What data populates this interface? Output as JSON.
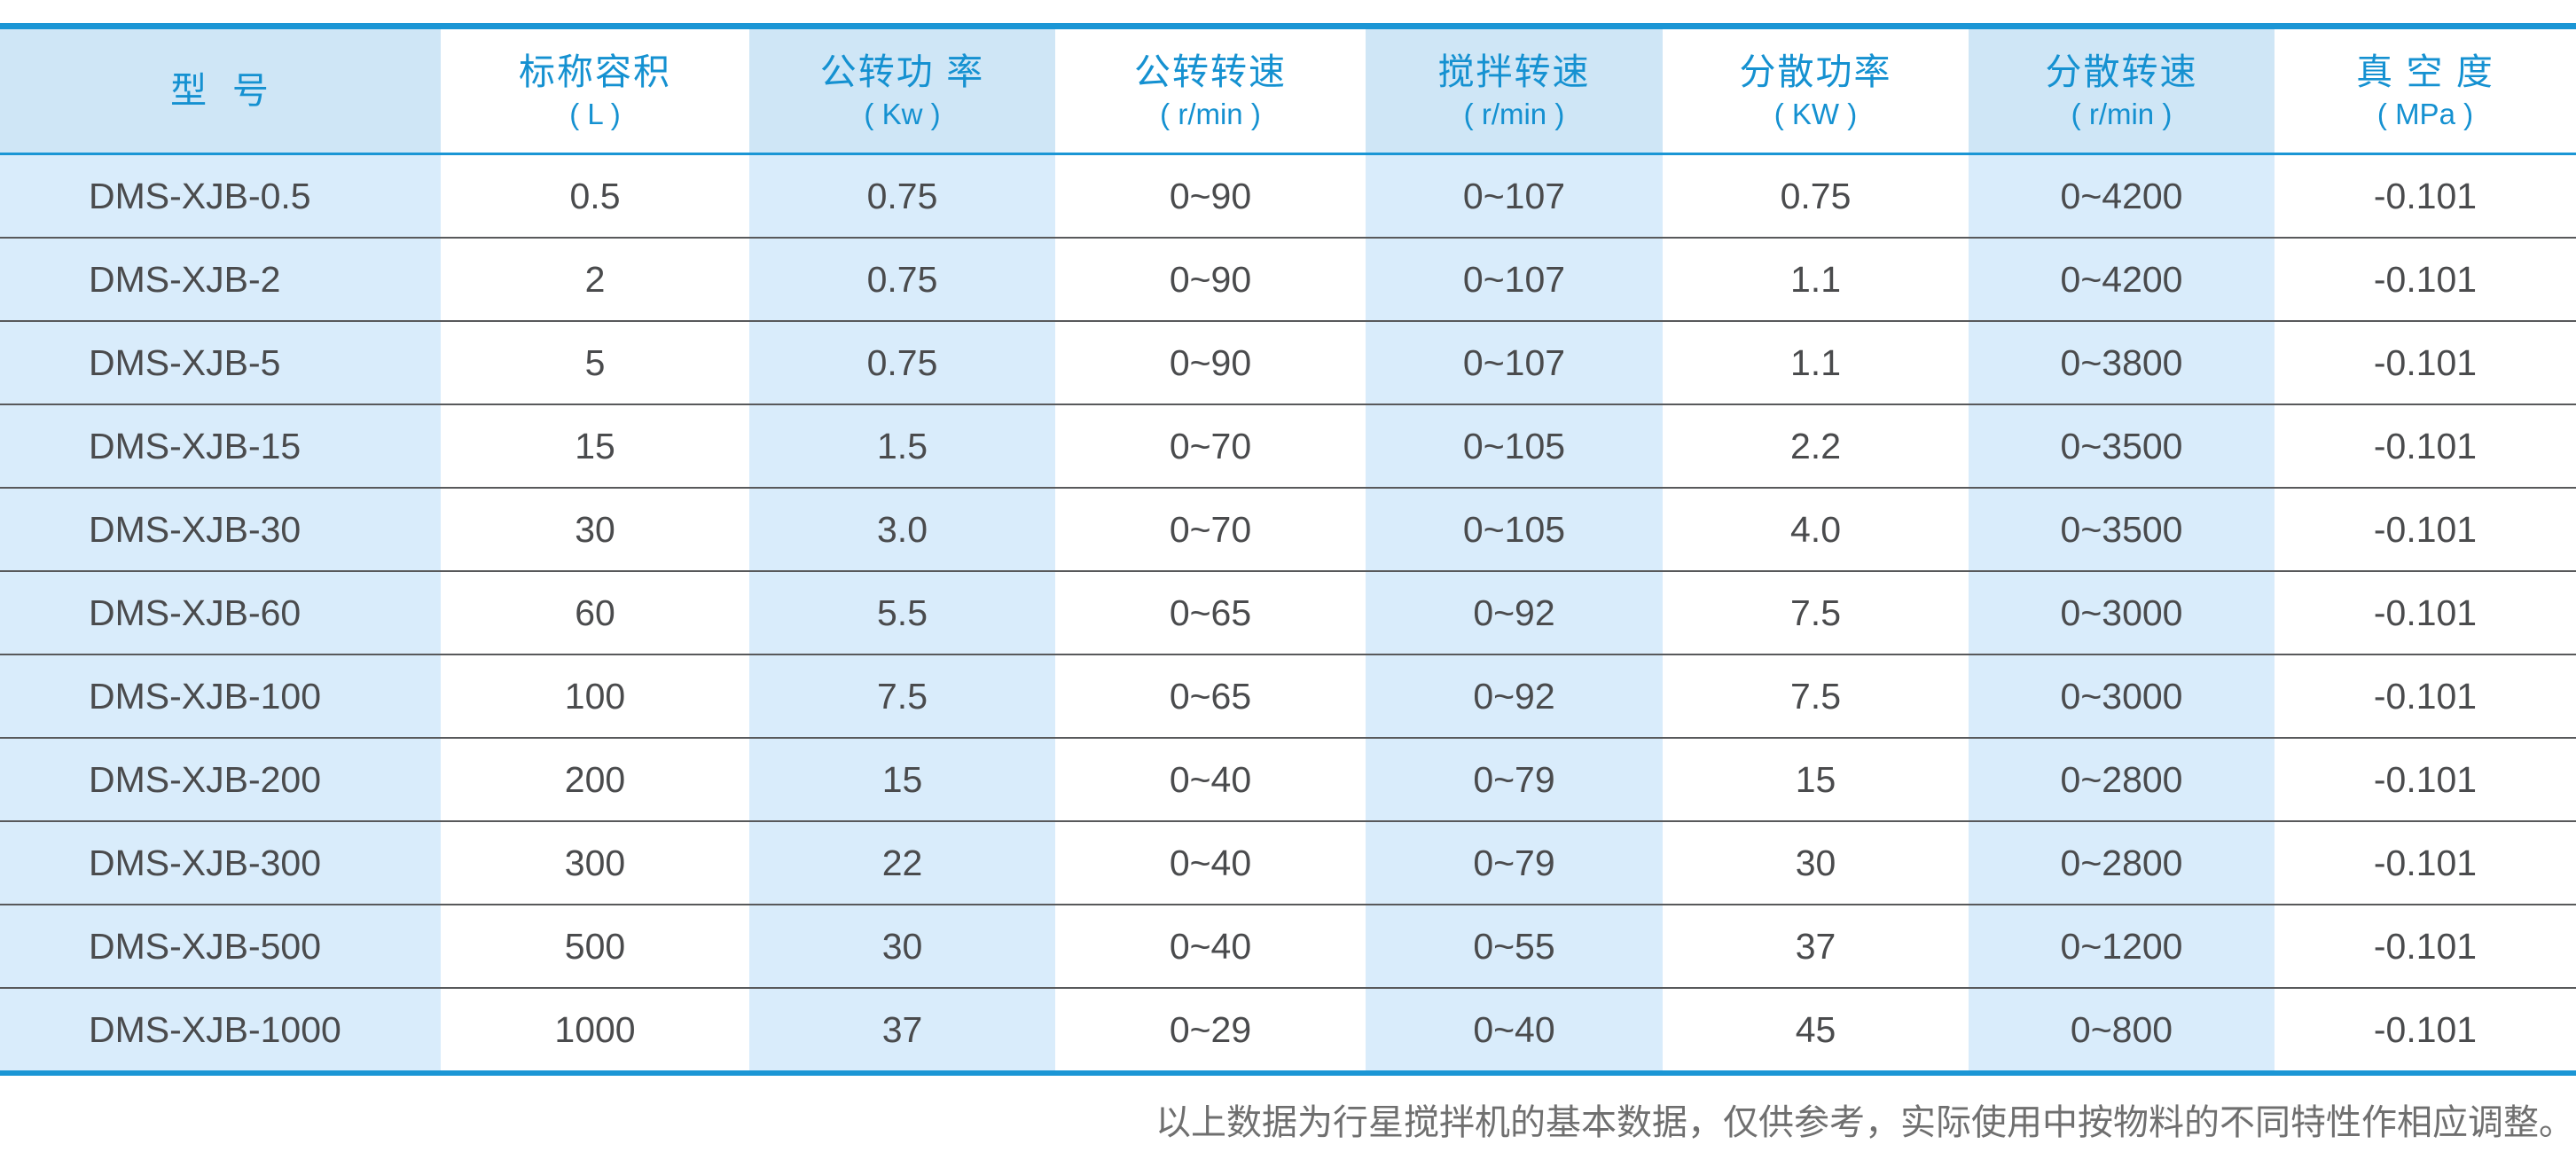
{
  "table": {
    "columns": [
      {
        "title": "型  号",
        "unit": ""
      },
      {
        "title": "标称容积",
        "unit": "( L )"
      },
      {
        "title": "公转功 率",
        "unit": "( Kw )"
      },
      {
        "title": "公转转速",
        "unit": "( r/min )"
      },
      {
        "title": "搅拌转速",
        "unit": "( r/min )"
      },
      {
        "title": "分散功率",
        "unit": "( KW )"
      },
      {
        "title": "分散转速",
        "unit": "( r/min )"
      },
      {
        "title": "真 空 度",
        "unit": "( MPa )"
      }
    ],
    "rows": [
      [
        "DMS-XJB-0.5",
        "0.5",
        "0.75",
        "0~90",
        "0~107",
        "0.75",
        "0~4200",
        "-0.101"
      ],
      [
        "DMS-XJB-2",
        "2",
        "0.75",
        "0~90",
        "0~107",
        "1.1",
        "0~4200",
        "-0.101"
      ],
      [
        "DMS-XJB-5",
        "5",
        "0.75",
        "0~90",
        "0~107",
        "1.1",
        "0~3800",
        "-0.101"
      ],
      [
        "DMS-XJB-15",
        "15",
        "1.5",
        "0~70",
        "0~105",
        "2.2",
        "0~3500",
        "-0.101"
      ],
      [
        "DMS-XJB-30",
        "30",
        "3.0",
        "0~70",
        "0~105",
        "4.0",
        "0~3500",
        "-0.101"
      ],
      [
        "DMS-XJB-60",
        "60",
        "5.5",
        "0~65",
        "0~92",
        "7.5",
        "0~3000",
        "-0.101"
      ],
      [
        "DMS-XJB-100",
        "100",
        "7.5",
        "0~65",
        "0~92",
        "7.5",
        "0~3000",
        "-0.101"
      ],
      [
        "DMS-XJB-200",
        "200",
        "15",
        "0~40",
        "0~79",
        "15",
        "0~2800",
        "-0.101"
      ],
      [
        "DMS-XJB-300",
        "300",
        "22",
        "0~40",
        "0~79",
        "30",
        "0~2800",
        "-0.101"
      ],
      [
        "DMS-XJB-500",
        "500",
        "30",
        "0~40",
        "0~55",
        "37",
        "0~1200",
        "-0.101"
      ],
      [
        "DMS-XJB-1000",
        "1000",
        "37",
        "0~29",
        "0~40",
        "45",
        "0~800",
        "-0.101"
      ]
    ]
  },
  "footnote": "以上数据为行星搅拌机的基本数据，仅供参考，实际使用中按物料的不同特性作相应调整。",
  "colors": {
    "accent_blue": "#1b96d5",
    "header_text_blue": "#1591d1",
    "header_shaded_bg": "#cfe6f6",
    "column_shaded_bg": "#d9ecfb",
    "row_separator": "#58595b",
    "body_text": "#4a4b4d",
    "note_text": "#6f6f6f"
  }
}
